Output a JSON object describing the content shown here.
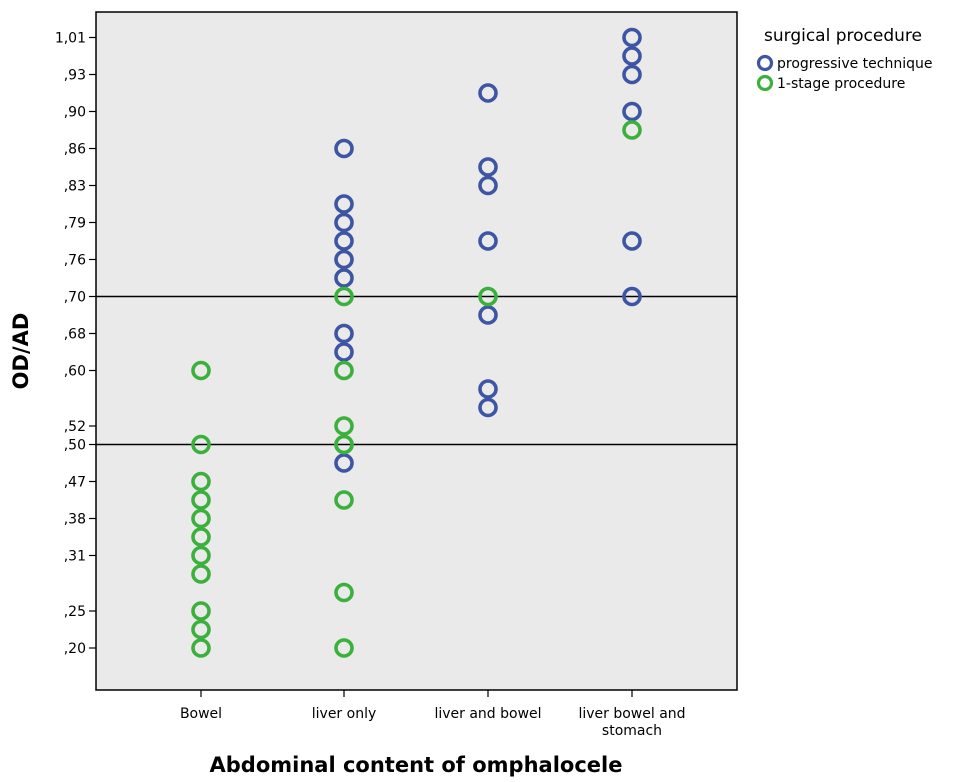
{
  "chart_data": {
    "type": "scatter",
    "title": "",
    "xlabel": "Abdominal content of omphalocele",
    "ylabel": "OD/AD",
    "categories": [
      [
        "Bowel"
      ],
      [
        "liver only"
      ],
      [
        "liver and bowel"
      ],
      [
        "liver bowel and",
        "stomach"
      ]
    ],
    "y_ticks": [
      ",20",
      ",25",
      ",31",
      ",38",
      ",47",
      ",50",
      ",52",
      ",60",
      ",68",
      ",70",
      ",76",
      ",79",
      ",83",
      ",86",
      ",90",
      ",93",
      "1,01"
    ],
    "y_axis_note": "categorical ordinal axis: ticks are the observed OD/AD values; the slot between ,20 and ,25 holds ,22; ,25/,31 hold ,27/,28; ,31/,38 hold ,34; ,38/,47 hold ,42; ,47/,50 holds ,48; ,52/,60 holds ,55 and ,57; ,60/,68 holds ,64; ,68/,70 holds ,69; ,70/,76 holds ,73; ,76/,79 holds ,78; ,79/,83 holds ,80; ,83/,86 holds ,84; ,86/,90 holds ,88; ,90/,93 holds ,91; ,93/1,01 holds ,97",
    "reference_lines": [
      ",50",
      ",70"
    ],
    "legend": {
      "title": "surgical procedure",
      "position": "top-right, outside plot area",
      "entries": [
        {
          "label": "progressive technique",
          "color": "#3d55a3"
        },
        {
          "label": "1-stage procedure",
          "color": "#3cb03c"
        }
      ]
    },
    "grid": false,
    "plot_background": "#eaeaea",
    "series": [
      {
        "name": "progressive technique",
        "color": "#3d55a3",
        "points": [
          {
            "x": "liver only",
            "y": 0.86
          },
          {
            "x": "liver only",
            "y": 0.8
          },
          {
            "x": "liver only",
            "y": 0.79
          },
          {
            "x": "liver only",
            "y": 0.78
          },
          {
            "x": "liver only",
            "y": 0.76
          },
          {
            "x": "liver only",
            "y": 0.73
          },
          {
            "x": "liver only",
            "y": 0.68
          },
          {
            "x": "liver only",
            "y": 0.64
          },
          {
            "x": "liver only",
            "y": 0.48
          },
          {
            "x": "liver and bowel",
            "y": 0.91
          },
          {
            "x": "liver and bowel",
            "y": 0.84
          },
          {
            "x": "liver and bowel",
            "y": 0.83
          },
          {
            "x": "liver and bowel",
            "y": 0.78
          },
          {
            "x": "liver and bowel",
            "y": 0.69
          },
          {
            "x": "liver and bowel",
            "y": 0.57
          },
          {
            "x": "liver and bowel",
            "y": 0.55
          },
          {
            "x": "liver bowel and stomach",
            "y": 1.01
          },
          {
            "x": "liver bowel and stomach",
            "y": 0.97
          },
          {
            "x": "liver bowel and stomach",
            "y": 0.93
          },
          {
            "x": "liver bowel and stomach",
            "y": 0.9
          },
          {
            "x": "liver bowel and stomach",
            "y": 0.78
          },
          {
            "x": "liver bowel and stomach",
            "y": 0.7
          }
        ]
      },
      {
        "name": "1-stage procedure",
        "color": "#3cb03c",
        "points": [
          {
            "x": "Bowel",
            "y": 0.6
          },
          {
            "x": "Bowel",
            "y": 0.5
          },
          {
            "x": "Bowel",
            "y": 0.47
          },
          {
            "x": "Bowel",
            "y": 0.42
          },
          {
            "x": "Bowel",
            "y": 0.38
          },
          {
            "x": "Bowel",
            "y": 0.34
          },
          {
            "x": "Bowel",
            "y": 0.31
          },
          {
            "x": "Bowel",
            "y": 0.28
          },
          {
            "x": "Bowel",
            "y": 0.25
          },
          {
            "x": "Bowel",
            "y": 0.22
          },
          {
            "x": "Bowel",
            "y": 0.2
          },
          {
            "x": "liver only",
            "y": 0.7
          },
          {
            "x": "liver only",
            "y": 0.6
          },
          {
            "x": "liver only",
            "y": 0.52
          },
          {
            "x": "liver only",
            "y": 0.5
          },
          {
            "x": "liver only",
            "y": 0.5
          },
          {
            "x": "liver only",
            "y": 0.42
          },
          {
            "x": "liver only",
            "y": 0.27
          },
          {
            "x": "liver only",
            "y": 0.2
          },
          {
            "x": "liver and bowel",
            "y": 0.7
          },
          {
            "x": "liver bowel and stomach",
            "y": 0.88
          }
        ]
      }
    ]
  }
}
